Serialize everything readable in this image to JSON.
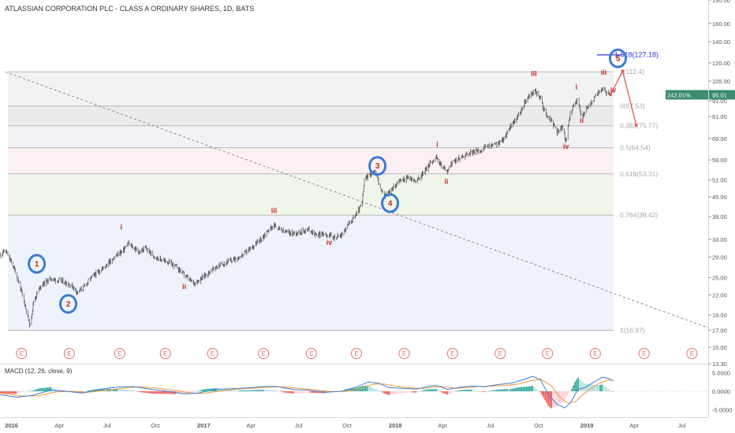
{
  "title": "ATLASSIAN CORPORATION PLC - CLASS A ORDINARY SHARES, 1D, BATS",
  "chart_data": {
    "type": "candlestick",
    "price_scale": "log",
    "ylim": [
      13.3,
      190.0
    ],
    "xlim": [
      "2015-12-10",
      "2019-08-20"
    ],
    "price_ticks": [
      190.0,
      160.0,
      140.0,
      120.0,
      105.0,
      91.0,
      81.0,
      69.0,
      59.0,
      51.0,
      45.0,
      39.0,
      33.0,
      29.0,
      25.0,
      22.0,
      19.0,
      17.0,
      15.0,
      13.3
    ],
    "price_tick_labels": [
      "190.00",
      "160.00",
      "140.00",
      "120.00",
      "105.00",
      "91.00",
      "81.00",
      "69.00",
      "59.00",
      "51.00",
      "45.00",
      "39.00",
      "33.00",
      "29.00",
      "25.00",
      "22.00",
      "19.00",
      "17.00",
      "15.00",
      "13.30"
    ],
    "time_ticks": [
      {
        "date": "2016-01-01",
        "label": "2016"
      },
      {
        "date": "2016-04-01",
        "label": "Apr"
      },
      {
        "date": "2016-07-01",
        "label": "Jul"
      },
      {
        "date": "2016-10-01",
        "label": "Oct"
      },
      {
        "date": "2017-01-01",
        "label": "2017"
      },
      {
        "date": "2017-04-01",
        "label": "Apr"
      },
      {
        "date": "2017-07-01",
        "label": "Jul"
      },
      {
        "date": "2017-10-01",
        "label": "Oct"
      },
      {
        "date": "2018-01-01",
        "label": "2018"
      },
      {
        "date": "2018-04-01",
        "label": "Apr"
      },
      {
        "date": "2018-07-01",
        "label": "Jul"
      },
      {
        "date": "2018-10-01",
        "label": "Oct"
      },
      {
        "date": "2019-01-01",
        "label": "2019"
      },
      {
        "date": "2019-04-01",
        "label": "Apr"
      },
      {
        "date": "2019-07-01",
        "label": "Jul"
      }
    ],
    "price_path": [
      [
        "2015-12-10",
        29.5
      ],
      [
        "2015-12-20",
        30.5
      ],
      [
        "2016-01-05",
        27.0
      ],
      [
        "2016-01-15",
        24.0
      ],
      [
        "2016-01-25",
        21.0
      ],
      [
        "2016-02-05",
        17.5
      ],
      [
        "2016-02-12",
        21.0
      ],
      [
        "2016-02-25",
        23.5
      ],
      [
        "2016-03-15",
        24.8
      ],
      [
        "2016-04-10",
        24.2
      ],
      [
        "2016-04-25",
        23.5
      ],
      [
        "2016-05-05",
        22.5
      ],
      [
        "2016-05-15",
        23.0
      ],
      [
        "2016-06-01",
        25.0
      ],
      [
        "2016-06-20",
        26.5
      ],
      [
        "2016-07-15",
        29.0
      ],
      [
        "2016-08-01",
        30.5
      ],
      [
        "2016-08-10",
        32.0
      ],
      [
        "2016-09-01",
        30.0
      ],
      [
        "2016-09-12",
        31.0
      ],
      [
        "2016-09-25",
        29.5
      ],
      [
        "2016-10-10",
        28.5
      ],
      [
        "2016-10-25",
        28.0
      ],
      [
        "2016-11-10",
        27.0
      ],
      [
        "2016-11-25",
        25.5
      ],
      [
        "2016-12-05",
        24.5
      ],
      [
        "2016-12-15",
        24.0
      ],
      [
        "2017-01-05",
        25.5
      ],
      [
        "2017-01-25",
        27.0
      ],
      [
        "2017-02-15",
        28.0
      ],
      [
        "2017-03-10",
        29.0
      ],
      [
        "2017-04-01",
        31.0
      ],
      [
        "2017-04-20",
        33.0
      ],
      [
        "2017-05-05",
        35.5
      ],
      [
        "2017-05-15",
        36.5
      ],
      [
        "2017-06-01",
        35.0
      ],
      [
        "2017-06-20",
        34.5
      ],
      [
        "2017-07-05",
        35.0
      ],
      [
        "2017-07-20",
        35.5
      ],
      [
        "2017-08-05",
        34.0
      ],
      [
        "2017-08-20",
        34.5
      ],
      [
        "2017-09-05",
        33.5
      ],
      [
        "2017-09-20",
        34.0
      ],
      [
        "2017-10-05",
        37.0
      ],
      [
        "2017-10-20",
        40.0
      ],
      [
        "2017-10-30",
        43.0
      ],
      [
        "2017-11-03",
        51.0
      ],
      [
        "2017-11-15",
        53.5
      ],
      [
        "2017-11-25",
        54.0
      ],
      [
        "2017-12-05",
        47.0
      ],
      [
        "2017-12-12",
        45.5
      ],
      [
        "2017-12-20",
        46.5
      ],
      [
        "2018-01-05",
        50.0
      ],
      [
        "2018-01-25",
        52.0
      ],
      [
        "2018-02-10",
        50.5
      ],
      [
        "2018-02-25",
        54.0
      ],
      [
        "2018-03-10",
        58.0
      ],
      [
        "2018-03-20",
        60.0
      ],
      [
        "2018-04-01",
        56.0
      ],
      [
        "2018-04-10",
        54.5
      ],
      [
        "2018-04-20",
        58.0
      ],
      [
        "2018-05-05",
        60.0
      ],
      [
        "2018-05-20",
        62.0
      ],
      [
        "2018-06-10",
        63.0
      ],
      [
        "2018-06-25",
        65.0
      ],
      [
        "2018-07-10",
        66.0
      ],
      [
        "2018-07-25",
        68.0
      ],
      [
        "2018-08-05",
        74.0
      ],
      [
        "2018-08-15",
        78.0
      ],
      [
        "2018-08-25",
        82.0
      ],
      [
        "2018-09-05",
        90.0
      ],
      [
        "2018-09-15",
        95.0
      ],
      [
        "2018-09-25",
        97.5
      ],
      [
        "2018-10-05",
        92.0
      ],
      [
        "2018-10-15",
        82.0
      ],
      [
        "2018-10-25",
        79.0
      ],
      [
        "2018-11-05",
        72.0
      ],
      [
        "2018-11-15",
        75.0
      ],
      [
        "2018-11-22",
        68.0
      ],
      [
        "2018-12-01",
        84.0
      ],
      [
        "2018-12-10",
        90.0
      ],
      [
        "2018-12-15",
        92.0
      ],
      [
        "2018-12-22",
        80.0
      ],
      [
        "2018-12-28",
        84.0
      ],
      [
        "2019-01-05",
        88.0
      ],
      [
        "2019-01-15",
        92.0
      ],
      [
        "2019-01-25",
        98.0
      ],
      [
        "2019-02-01",
        100.0
      ],
      [
        "2019-02-08",
        96.0
      ],
      [
        "2019-02-15",
        95.0
      ]
    ],
    "fib_levels": [
      {
        "price": 112.4,
        "date": "2015-12-25",
        "label": "1(112.4)"
      },
      {
        "price": 87.53,
        "date": "2015-12-25",
        "label": "0(87.53)"
      },
      {
        "price": 75.77,
        "date": "2015-12-25",
        "label": "0.382(75.77)"
      },
      {
        "price": 64.54,
        "date": "2015-12-25",
        "label": "0.5(64.54)"
      },
      {
        "price": 53.31,
        "date": "2015-12-25",
        "label": "0.618(53.31)"
      },
      {
        "price": 39.42,
        "date": "2015-12-25",
        "label": "0.764(39.42)"
      },
      {
        "price": 16.97,
        "date": "2015-12-25",
        "label": "1(16.97)"
      }
    ],
    "fib_band_colors": [
      "#f2f2f2",
      "#ebebeb",
      "#f1f1f6",
      "#fdf0f2",
      "#eff6e9",
      "#eef3fb"
    ],
    "extension": {
      "price": 127.18,
      "from": "2019-01-20",
      "to": "2019-03-10",
      "label": "1.618(127.18)",
      "color": "#3a3adb"
    },
    "trendline": {
      "from": [
        "2015-12-20",
        112.4
      ],
      "to": [
        "2019-08-20",
        17.3
      ]
    },
    "wave_labels_major": [
      {
        "label": "1",
        "date": "2016-02-18",
        "price": 27.6
      },
      {
        "label": "2",
        "date": "2016-04-18",
        "price": 20.6
      },
      {
        "label": "3",
        "date": "2017-11-28",
        "price": 56.5
      },
      {
        "label": "4",
        "date": "2017-12-22",
        "price": 43.0
      },
      {
        "label": "5",
        "date": "2019-03-01",
        "price": 124.0
      }
    ],
    "wave_labels_minor": [
      {
        "label": "i",
        "date": "2016-07-28",
        "price": 35.5
      },
      {
        "label": "ii",
        "date": "2016-11-25",
        "price": 23.0
      },
      {
        "label": "iii",
        "date": "2017-05-15",
        "price": 40.0
      },
      {
        "label": "iv",
        "date": "2017-08-28",
        "price": 31.7
      },
      {
        "label": "i",
        "date": "2018-03-22",
        "price": 65.0
      },
      {
        "label": "ii",
        "date": "2018-04-08",
        "price": 49.5
      },
      {
        "label": "iii",
        "date": "2018-09-22",
        "price": 109.0
      },
      {
        "label": "iv",
        "date": "2018-11-22",
        "price": 64.0
      },
      {
        "label": "i",
        "date": "2018-12-12",
        "price": 99.0
      },
      {
        "label": "ii",
        "date": "2018-12-22",
        "price": 77.5
      },
      {
        "label": "iii",
        "date": "2019-02-02",
        "price": 110.0
      },
      {
        "label": "iv",
        "date": "2019-02-20",
        "price": 96.5
      }
    ],
    "projection": [
      [
        "2019-02-15",
        95.0
      ],
      [
        "2019-03-10",
        113.0
      ],
      [
        "2019-04-05",
        76.0
      ]
    ],
    "earnings_events": {
      "label": "E",
      "dates": [
        "2016-01-20",
        "2016-04-20",
        "2016-07-25",
        "2016-10-20",
        "2017-01-18",
        "2017-04-25",
        "2017-07-25",
        "2017-10-19",
        "2018-01-18",
        "2018-04-20",
        "2018-07-20",
        "2018-10-18",
        "2019-01-17",
        "2019-04-20",
        "2019-07-20"
      ]
    },
    "current_price": {
      "value": 95.01,
      "label": "95.01",
      "change_label": "242.01%",
      "color": "#3c8c6e"
    },
    "macd": {
      "title": "MACD (12, 26, close, 9)",
      "ticks": [
        5.0,
        0.0,
        -5.0
      ],
      "tick_labels": [
        "5.0000",
        "0.0000",
        "-5.0000"
      ],
      "ylim": [
        -7.0,
        7.0
      ],
      "macd_path": [
        [
          "2015-12-10",
          -0.9
        ],
        [
          "2016-01-10",
          -1.6
        ],
        [
          "2016-02-10",
          -1.1
        ],
        [
          "2016-03-15",
          0.3
        ],
        [
          "2016-04-15",
          0.0
        ],
        [
          "2016-05-15",
          -0.5
        ],
        [
          "2016-06-15",
          0.5
        ],
        [
          "2016-07-20",
          1.1
        ],
        [
          "2016-08-20",
          1.3
        ],
        [
          "2016-09-20",
          0.6
        ],
        [
          "2016-10-25",
          0.0
        ],
        [
          "2016-11-25",
          -0.7
        ],
        [
          "2016-12-20",
          -0.5
        ],
        [
          "2017-01-25",
          0.5
        ],
        [
          "2017-02-25",
          0.7
        ],
        [
          "2017-03-25",
          0.9
        ],
        [
          "2017-04-25",
          1.3
        ],
        [
          "2017-05-20",
          1.3
        ],
        [
          "2017-06-20",
          0.5
        ],
        [
          "2017-07-20",
          0.3
        ],
        [
          "2017-08-20",
          -0.3
        ],
        [
          "2017-09-20",
          0.0
        ],
        [
          "2017-10-20",
          1.2
        ],
        [
          "2017-11-10",
          2.5
        ],
        [
          "2017-11-30",
          2.2
        ],
        [
          "2017-12-20",
          1.0
        ],
        [
          "2018-01-15",
          0.8
        ],
        [
          "2018-02-10",
          0.6
        ],
        [
          "2018-03-05",
          1.3
        ],
        [
          "2018-03-20",
          1.6
        ],
        [
          "2018-04-10",
          0.5
        ],
        [
          "2018-05-05",
          1.1
        ],
        [
          "2018-05-25",
          1.4
        ],
        [
          "2018-06-20",
          1.2
        ],
        [
          "2018-07-15",
          1.8
        ],
        [
          "2018-08-10",
          2.2
        ],
        [
          "2018-08-30",
          3.0
        ],
        [
          "2018-09-20",
          4.0
        ],
        [
          "2018-10-05",
          3.0
        ],
        [
          "2018-10-20",
          -1.0
        ],
        [
          "2018-11-05",
          -3.5
        ],
        [
          "2018-11-20",
          -4.5
        ],
        [
          "2018-12-01",
          -3.0
        ],
        [
          "2018-12-15",
          0.5
        ],
        [
          "2018-12-28",
          1.0
        ],
        [
          "2019-01-15",
          2.5
        ],
        [
          "2019-01-30",
          3.8
        ],
        [
          "2019-02-10",
          3.5
        ],
        [
          "2019-02-20",
          2.8
        ]
      ],
      "signal_path": [
        [
          "2015-12-10",
          -0.5
        ],
        [
          "2016-01-20",
          -1.3
        ],
        [
          "2016-02-20",
          -1.2
        ],
        [
          "2016-03-25",
          -0.2
        ],
        [
          "2016-04-25",
          0.0
        ],
        [
          "2016-05-25",
          -0.3
        ],
        [
          "2016-06-25",
          0.2
        ],
        [
          "2016-07-30",
          0.8
        ],
        [
          "2016-08-30",
          1.2
        ],
        [
          "2016-09-30",
          0.9
        ],
        [
          "2016-11-05",
          0.3
        ],
        [
          "2016-12-05",
          -0.4
        ],
        [
          "2016-12-30",
          -0.6
        ],
        [
          "2017-02-05",
          0.1
        ],
        [
          "2017-03-05",
          0.6
        ],
        [
          "2017-04-05",
          0.8
        ],
        [
          "2017-05-05",
          1.1
        ],
        [
          "2017-06-01",
          1.2
        ],
        [
          "2017-07-01",
          0.8
        ],
        [
          "2017-08-01",
          0.4
        ],
        [
          "2017-09-01",
          -0.1
        ],
        [
          "2017-10-01",
          0.0
        ],
        [
          "2017-10-30",
          0.8
        ],
        [
          "2017-11-20",
          1.9
        ],
        [
          "2017-12-10",
          2.0
        ],
        [
          "2018-01-01",
          1.4
        ],
        [
          "2018-01-30",
          0.9
        ],
        [
          "2018-02-25",
          0.8
        ],
        [
          "2018-03-15",
          1.1
        ],
        [
          "2018-04-01",
          1.3
        ],
        [
          "2018-04-25",
          0.8
        ],
        [
          "2018-05-20",
          1.0
        ],
        [
          "2018-06-10",
          1.3
        ],
        [
          "2018-07-05",
          1.4
        ],
        [
          "2018-07-30",
          1.6
        ],
        [
          "2018-08-25",
          2.0
        ],
        [
          "2018-09-15",
          2.8
        ],
        [
          "2018-10-05",
          3.3
        ],
        [
          "2018-10-25",
          1.5
        ],
        [
          "2018-11-10",
          -1.5
        ],
        [
          "2018-11-25",
          -3.2
        ],
        [
          "2018-12-10",
          -2.8
        ],
        [
          "2018-12-25",
          -0.8
        ],
        [
          "2019-01-10",
          0.8
        ],
        [
          "2019-01-25",
          2.2
        ],
        [
          "2019-02-10",
          3.0
        ],
        [
          "2019-02-20",
          3.0
        ]
      ],
      "hist_colors": {
        "up_strong": "#26a69a",
        "up_weak": "#b2dfdb",
        "down_strong": "#ef5350",
        "down_weak": "#ffcdd2"
      },
      "macd_color": "#3e7fd6",
      "signal_color": "#f29a38"
    },
    "colors": {
      "up": "#26a69a",
      "down": "#ef5350",
      "wave_major": "#c62828",
      "circle": "#3a7bd5",
      "fib_line": "#b9b9b9",
      "fib_label": "#a7a7a7",
      "projection": "#ef5350",
      "event": "#e57373"
    }
  }
}
